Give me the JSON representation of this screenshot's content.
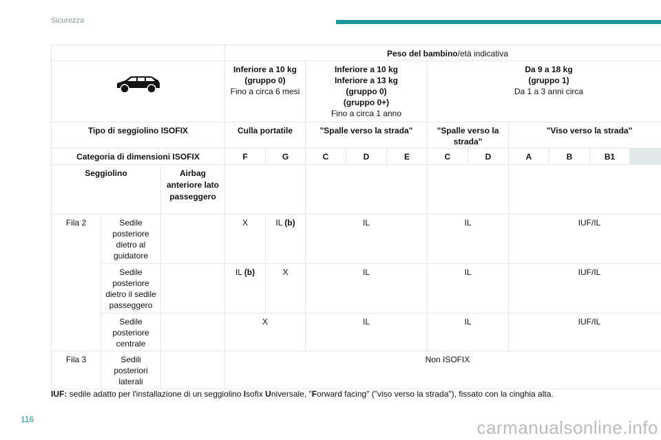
{
  "header": {
    "section": "Sicurezza",
    "accent_color": "#1a9a9a"
  },
  "table": {
    "peso_bold": "Peso del bambino",
    "peso_rest": "/età indicativa",
    "car_icon": "car-icon",
    "g0_bold": "Inferiore a 10 kg\n(gruppo 0)",
    "g0_rest": "Fino a circa 6 mesi",
    "g0p_bold": "Inferiore a 10 kg\nInferiore a 13 kg\n(gruppo 0)\n(gruppo 0+)",
    "g0p_rest": "Fino a circa 1 anno",
    "g1_bold": "Da 9 a 18 kg\n(gruppo 1)",
    "g1_rest": "Da 1 a 3 anni circa",
    "tipo_label": "Tipo di seggiolino ISOFIX",
    "tipo": [
      "Culla portatile",
      "\"Spalle verso la strada\"",
      "\"Spalle verso la strada\"",
      "\"Viso verso la strada\""
    ],
    "categoria_label": "Categoria di dimensioni ISOFIX",
    "categorie": [
      "F",
      "G",
      "C",
      "D",
      "E",
      "C",
      "D",
      "A",
      "B",
      "B1"
    ],
    "seggiolino_label": "Seggiolino",
    "airbag_label": "Airbag anteriore lato passeggero",
    "fila2": "Fila 2",
    "fila3": "Fila 3",
    "rows": [
      {
        "seat": "Sedile posteriore dietro al guidatore",
        "f": "X",
        "g_main": "IL ",
        "g_note": "(b)",
        "cde": "IL",
        "cd": "IL",
        "ab": "IUF/IL"
      },
      {
        "seat": "Sedile posteriore dietro il sedile passeggero",
        "f_main": "IL ",
        "f_note": "(b)",
        "g": "X",
        "cde": "IL",
        "cd": "IL",
        "ab": "IUF/IL"
      },
      {
        "seat": "Sedile posteriore centrale",
        "fg": "X",
        "cde": "IL",
        "cd": "IL",
        "ab": "IUF/IL"
      },
      {
        "seat": "Sedili posteriori laterali",
        "all": "Non ISOFIX"
      }
    ]
  },
  "footnote": {
    "s1": "IUF:",
    "s2": " sedile adatto per l'installazione di un seggiolino ",
    "s3": "I",
    "s4": "sofix ",
    "s5": "U",
    "s6": "niversale, \"",
    "s7": "F",
    "s8": "orward facing\" (\"viso verso la strada\"), fissato con la cinghia alta."
  },
  "page_number": "116",
  "watermark": "carmanualsonline.info"
}
